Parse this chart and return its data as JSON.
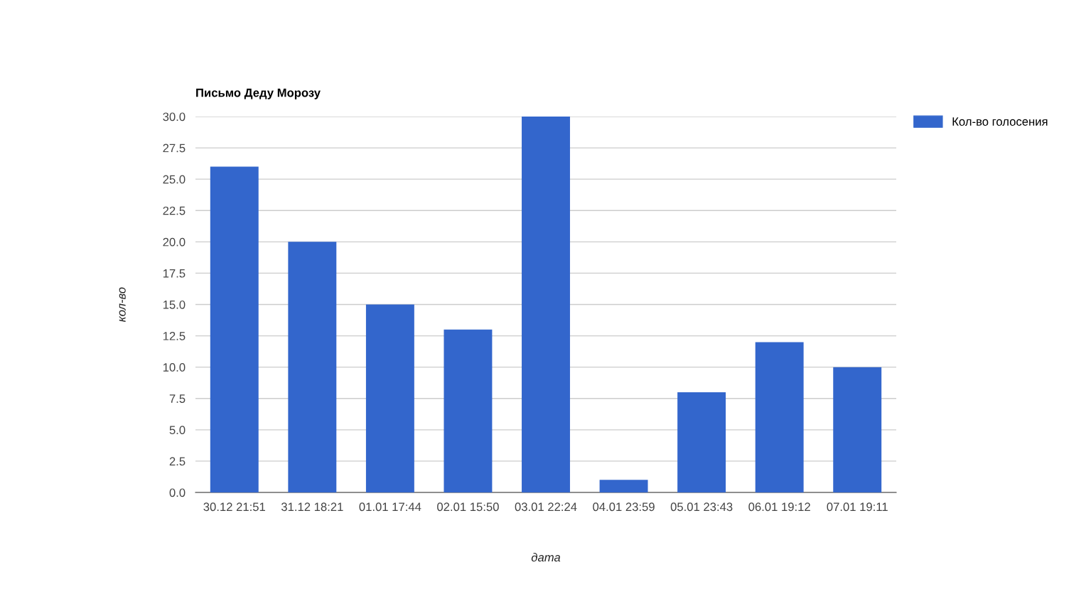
{
  "chart_data": {
    "type": "bar",
    "title": "Письмо Деду Морозу",
    "xlabel": "дата",
    "ylabel": "кол-во",
    "categories": [
      "30.12 21:51",
      "31.12 18:21",
      "01.01 17:44",
      "02.01 15:50",
      "03.01 22:24",
      "04.01 23:59",
      "05.01 23:43",
      "06.01 19:12",
      "07.01 19:11"
    ],
    "series": [
      {
        "name": "Кол-во голосения",
        "color": "#3366cc",
        "values": [
          26,
          20,
          15,
          13,
          30,
          1,
          8,
          12,
          10
        ]
      }
    ],
    "ylim": [
      0,
      30
    ],
    "yticks": [
      {
        "value": 0,
        "label": "0.0"
      },
      {
        "value": 2.5,
        "label": "2.5"
      },
      {
        "value": 5,
        "label": "5.0"
      },
      {
        "value": 7.5,
        "label": "7.5"
      },
      {
        "value": 10,
        "label": "10.0"
      },
      {
        "value": 12.5,
        "label": "12.5"
      },
      {
        "value": 15,
        "label": "15.0"
      },
      {
        "value": 17.5,
        "label": "17.5"
      },
      {
        "value": 20,
        "label": "20.0"
      },
      {
        "value": 22.5,
        "label": "22.5"
      },
      {
        "value": 25,
        "label": "25.0"
      },
      {
        "value": 27.5,
        "label": "27.5"
      },
      {
        "value": 30,
        "label": "30.0"
      }
    ],
    "grid": "y",
    "legend": "top right"
  }
}
